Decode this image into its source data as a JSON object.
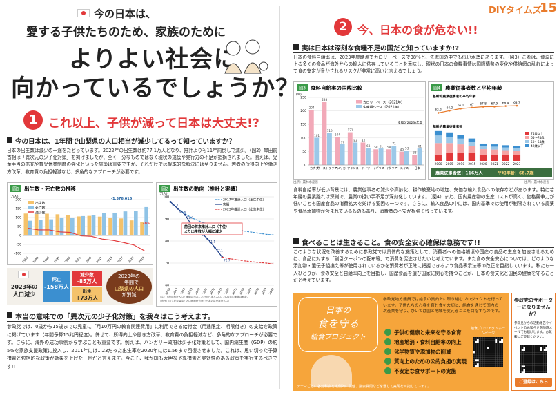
{
  "header": {
    "brand": "DIYタイムズ",
    "issue": "15"
  },
  "left": {
    "intro": "今の日本は、",
    "line2": "愛する子供たちのため、家族のために",
    "headline1": "よりよい社会に",
    "headline2": "向かっているでしょうか？",
    "section1": {
      "number": "1",
      "title": "これ以上、子供が減って日本は大丈夫!?",
      "heading": "今の日本は、1年間で山梨県の人口相当が減少してるって知っていますか？",
      "body": "日本の出生数は減少の一途をたどっています。2022年の出生数は約77.1万人となり、推計よりも11年前倒しで減少。（図2）岸田前首相は「異次元の少子化対策」を掲げましたが、全く十分なものではなく現状の規模や実行力の不足が指摘されました。例えば、児童手当の拡充や育児休業制度の強化といった施策は重要ですが、それだけでは根本的な解決には至りません。若者の所得向上や働き方改革、教育費の負担軽減など、多角的なアプローチが必要です。",
      "figure1": {
        "type": "bar",
        "label": "図1",
        "title": "出生数・死亡数の推移",
        "unit": "(万人)",
        "categories": [
          "1990",
          "1993",
          "1996",
          "1999",
          "2002",
          "2005",
          "2008",
          "2011",
          "2014",
          "2017",
          "2020",
          "2023"
        ],
        "series": [
          {
            "name": "出生数",
            "color": "#f4c26b",
            "values": [
              122,
              119,
              121,
              118,
              115,
              106,
              109,
              105,
              100,
              95,
              84,
              73
            ]
          },
          {
            "name": "死亡数",
            "color": "#8fc3e6",
            "values": [
              82,
              88,
              90,
              98,
              98,
              108,
              114,
              125,
              127,
              134,
              137,
              158
            ]
          },
          {
            "name": "減少数",
            "color": "#e2383a",
            "kind": "line",
            "values": [
              40,
              31,
              31,
              20,
              17,
              -2,
              -5,
              -20,
              -27,
              -39,
              -53,
              -85
            ]
          }
        ],
        "ylim": [
          -100,
          200
        ],
        "yticks": [
          -100,
          -50,
          0,
          50,
          100,
          150,
          200
        ],
        "annotations": [
          "-1,576,016",
          "-85"
        ]
      },
      "figure2": {
        "type": "line",
        "label": "図2",
        "title": "出生数の動向（推計と実績）",
        "unit": "(万人)",
        "categories": [
          "2016",
          "2017",
          "2018",
          "2019",
          "2020",
          "2021",
          "2022",
          "2023",
          "2024",
          "2025",
          "2026",
          "2027",
          "2028",
          "2029",
          "2030"
        ],
        "series": [
          {
            "name": "2017年推計人口（出生中位）",
            "color": "#3b8fd0",
            "dash": true,
            "values": [
              97.7,
              94.6,
              92.2,
              90.3,
              88.9,
              87.7,
              86.9,
              86.2,
              85.6,
              85.0,
              84.5,
              84.0,
              83.5,
              83.0,
              82.7
            ]
          },
          {
            "name": "実績",
            "color": "#1d3f8a",
            "values": [
              97.7,
              94.6,
              91.8,
              86.5,
              84.0,
              81.1,
              77.1,
              72.7,
              null,
              null,
              null,
              null,
              null,
              null,
              null
            ]
          },
          {
            "name": "2023年推計人口（出生中位）",
            "color": "#e2383a",
            "dash": true,
            "values": [
              null,
              null,
              null,
              null,
              null,
              null,
              null,
              72.7,
              72.0,
              71.5,
              71.0,
              70.6,
              70.3,
              70.0,
              69.5
            ]
          }
        ],
        "ylim": [
          60,
          100
        ],
        "yticks": [
          60,
          70,
          80,
          90,
          100
        ],
        "callout": [
          "前回の将来推計人口（中位）",
          "より出生数が大幅に減少"
        ],
        "note": [
          "（注）上段の推計人口・実績は日本における日本人人口。2022年の実績は概数。",
          "（出所）国立社会保障・人口問題研究所「日本の将来推計人口」"
        ]
      },
      "summary": {
        "title": "2023年の人口減少",
        "deaths_label": "死亡",
        "deaths": "-158万人",
        "decrease_label": "減少数",
        "decrease": "-85万人",
        "births_label": "出生",
        "births": "+73万人",
        "message": [
          "2023年の",
          "一年間で",
          "山梨県の人口",
          "が消滅"
        ]
      }
    },
    "section2": {
      "heading": "本当の意味での「異次元の少子化対策」を我々はこう考えます。",
      "body": "参政党では、0歳から15歳までの児童に「月10万円の教育関連費用」に利用できる給付金（用途限定、期限付き）の支給を政策に掲げています（年間予算15兆円程度）。併せて、所得向上や働き方改革、教育費の負担軽減など、多角的なアプローチが必要です。さらに、海外の成功事例から学ぶことも重要です。例えば、ハンガリー政府は少子化対策として、国内総生産（GDP）の約5%を家族支援政策に投入し、2011年には1.23だった出生率を2020年には1.56まで回復させました。これは、思い切った予算措置と包括的な政策が効果を上げた一例だと言えます。今こそ、我が国も大胆な予算措置と実効性のある政策を実行するべきです!!"
    }
  },
  "right": {
    "number": "2",
    "title": "今、日本の食が危ない!!",
    "heading": "実は日本は深刻な食糧不足の国だと知っていますか!?",
    "body1": "日本の食料自給率は、2023年度時点でカロリーベースで38％と、先進国の中でも低い水準にあります。（図3）これは、食卓に上る多くの食品が海外からの輸入に依存していることを意味し、現状の日本の食糧事情は国際情勢の変化や供給網の乱れによって食の安定が脅かされるリスクが非常に高いと言えるでしょう。",
    "figure3": {
      "type": "bar",
      "label": "図3",
      "title": "食料自給率の国際比較",
      "unit": "(%)",
      "categories": [
        "カナダ",
        "オーストラリア",
        "アメリカ",
        "フランス",
        "ドイツ",
        "イギリス",
        "イタリア",
        "スイス",
        "日本"
      ],
      "series": [
        {
          "name": "カロリーベース（2021年）",
          "color": "#f2a9b8",
          "values": [
            204,
            233,
            104,
            121,
            83,
            58,
            58,
            49,
            38
          ]
        },
        {
          "name": "生産額ベース（2021年）",
          "color": "#9cc8e8",
          "values": [
            101,
            119,
            77,
            83,
            63,
            61,
            71,
            53,
            61
          ]
        }
      ],
      "ylim": [
        0,
        250
      ],
      "yticks": [
        0,
        50,
        100,
        150,
        200,
        250
      ],
      "annotation": "令和5(2023)年度",
      "source": "出所：農林水産省"
    },
    "figure4": {
      "type": "stacked",
      "label": "図4",
      "title": "農業従事者数と平均年齢",
      "subtitle_age": "基幹的農業従事者の平均年齢",
      "subtitle_count": "基幹的農業従事者数",
      "categories": [
        "2000",
        "2005",
        "2010",
        "2015",
        "2020",
        "2021",
        "2022",
        "2023"
      ],
      "series": [
        {
          "name": "75歳以上",
          "color": "#e2383a",
          "values": [
            50,
            60,
            65,
            60,
            50,
            49,
            47,
            45
          ]
        },
        {
          "name": "65〜74歳",
          "color": "#f6a3a3",
          "values": [
            90,
            80,
            65,
            55,
            42,
            40,
            37,
            35
          ]
        },
        {
          "name": "50〜64歳",
          "color": "#9cc8e8",
          "values": [
            60,
            50,
            45,
            35,
            25,
            23,
            22,
            20
          ]
        },
        {
          "name": "49歳以下",
          "color": "#3b8fd0",
          "values": [
            40,
            34,
            30,
            26,
            19,
            18,
            17,
            16
          ]
        },
        {
          "name": "平均年齢",
          "color": "#e97b2c",
          "axis": "y2",
          "values": [
            62.2,
            64.2,
            66.1,
            67.0,
            67.8,
            67.9,
            68.4,
            68.7
          ]
        }
      ],
      "ylim": [
        0,
        250
      ],
      "y2lim": [
        55,
        75
      ],
      "summary": [
        "農業従事者数：116万人",
        "平均年齢：68.7歳"
      ],
      "source": "出所：農林水産省"
    },
    "body2": "食料自給率が低い背景には、農業従事者の減少や高齢化、耕作放棄地の増加、安価な輸入食品への依存などがあります。特に若年層の農業離れは深刻で、農業の担い手不足が深刻化しています。（図4）また、国内農産物の生産コストが高く、価格競争力が低いことも国産食品の消費拡大を妨げる要因の一つです。さらに、輸入食品の中には、国内基準では使用が制限されている農薬や食品添加物が含まれているものもあり、消費者の不安が根強く残っています。",
    "section3": {
      "heading": "食べることは生きること。食の安全安心確保は急務です!!",
      "body": "このような状況を改善するために参政党では具体的な施策として、消費者への価格補填や国産の食品の生産を加速させるために、食品に対する「割引クーポンの配布等」で消費を促進させたいと考えています。また食の安全安心については、どのような添加物・遺伝子組換え等が使用されているかを消費者が正確に把握できるよう食品表示法等の改正を目指しています。私たち一人ひとりが、食の安全と自給率向上を目指し、国産食品を選び国家に関心を持つことが、日本の食文化と国民の健康を守ることだと考えています。"
    },
    "project": {
      "title": [
        "日本の",
        "食を守る",
        "給食プロジェクト"
      ],
      "description": "参政党地方議員では給食の質向上に取り組むプロジェクトを行っています。子供たちの心身を育む食を大切に、給食を通じて国内の一次産業を守り、ひいては国と地域を支えることを目指すものです。",
      "items": [
        "子供の健康と未来を守る食育",
        "地産地消・食料自給率の向上",
        "化学物質や添加物の削減",
        "質向上のための公的負担の実現",
        "不安定な食サポートの実施"
      ],
      "qr_label": "給食プロジェクトホームページ",
      "footer": "テーマごとに各分科会を定例的に開催、議会質問などを通して実現を目指しています。"
    },
    "supporter": {
      "title": "参政党のサポーターになりませんか？",
      "body": "参政党からの活動報告やイベントのお知らせを随時メールでお届けします。お気軽にご登録ください。",
      "button": "ご登録はこちら"
    }
  }
}
